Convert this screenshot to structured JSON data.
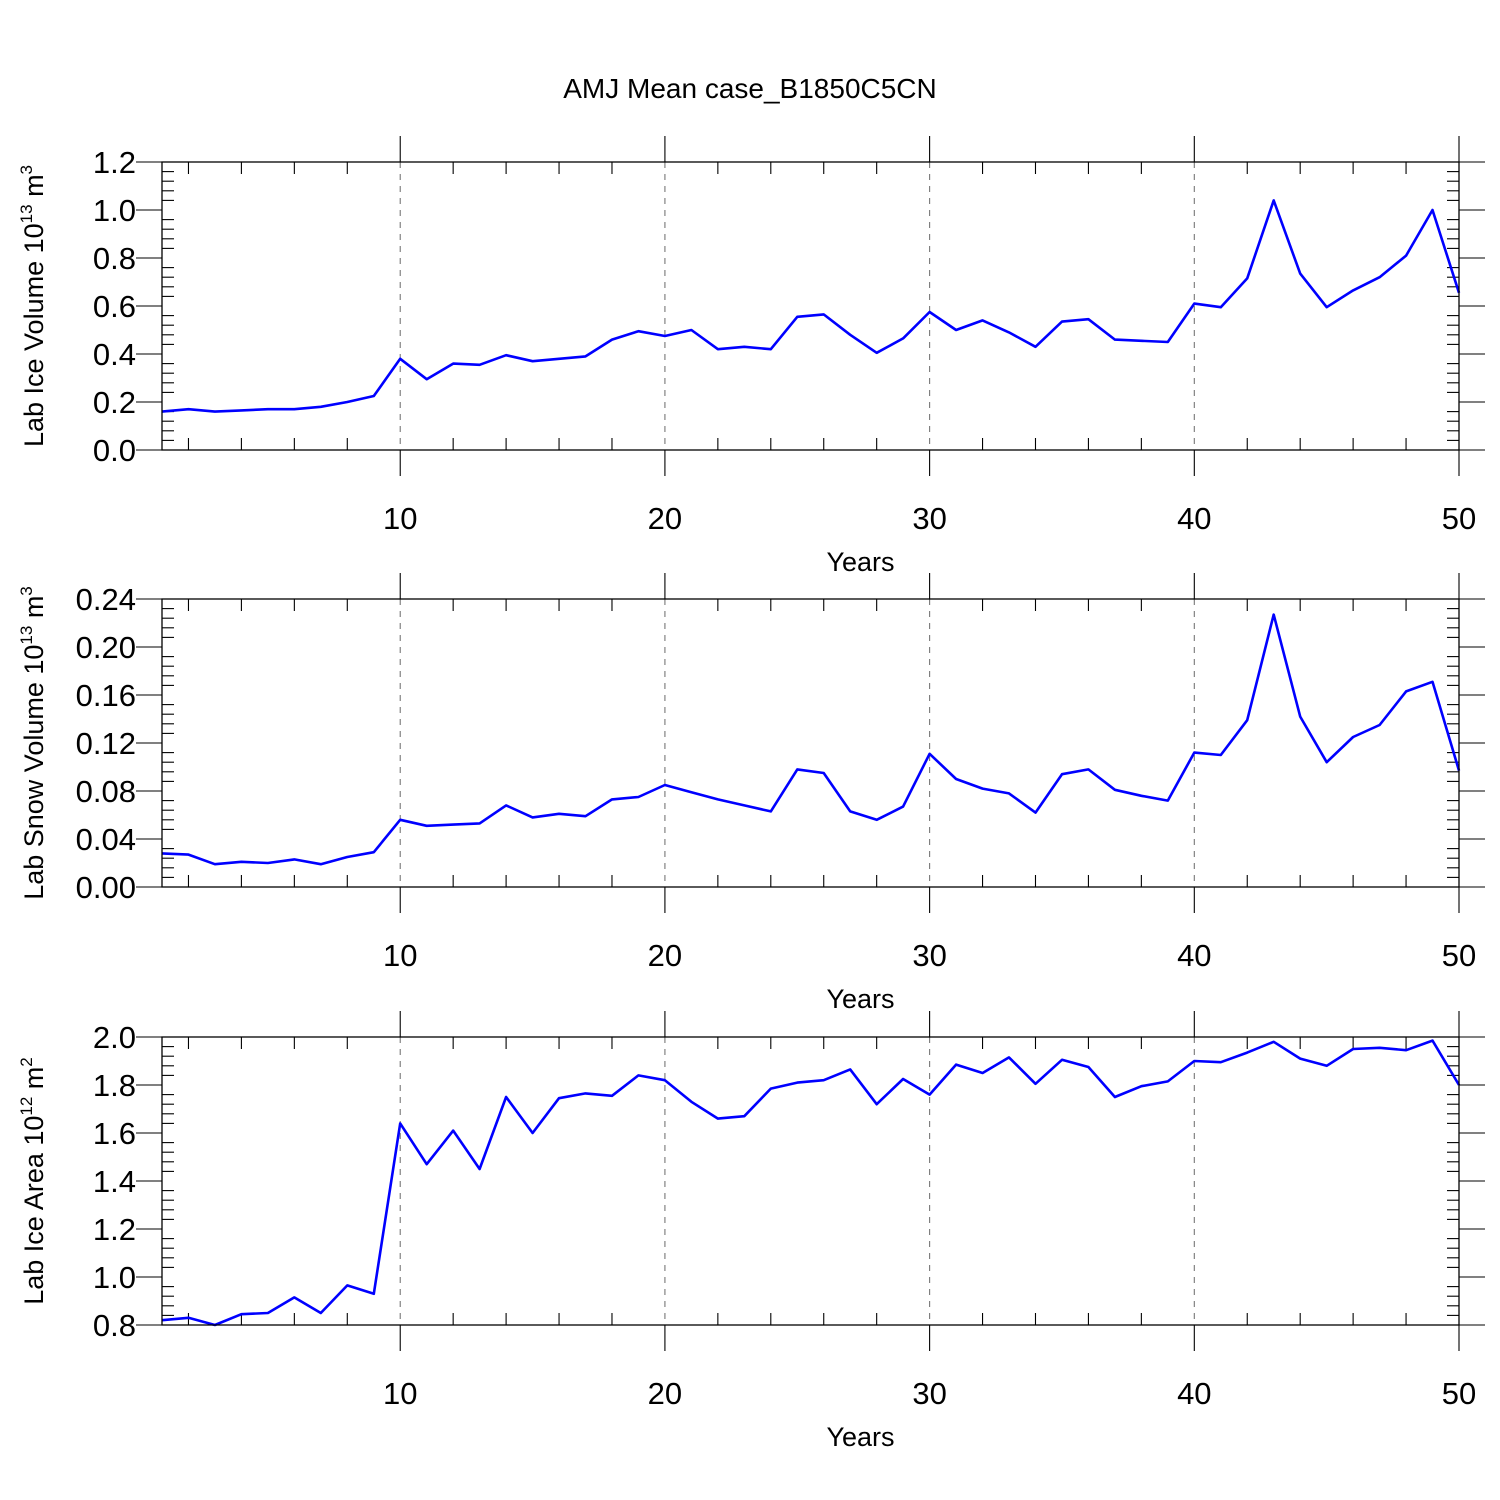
{
  "figure_title": "AMJ Mean case_B1850C5CN",
  "colors": {
    "series": "#0000ff",
    "grid": "#777777",
    "axes": "#000000"
  },
  "chart_data": [
    {
      "type": "line",
      "title": "",
      "xlabel": "Years",
      "ylabel": "Lab Ice Volume 10",
      "ylabel_sup": "13",
      "ylabel_unit": " m",
      "ylabel_unit_sup": "3",
      "xlim": [
        1,
        50
      ],
      "ylim": [
        0.0,
        1.2
      ],
      "xticks": [
        10,
        20,
        30,
        40,
        50
      ],
      "xtick_labels": [
        "10",
        "20",
        "30",
        "40",
        "50"
      ],
      "yticks": [
        0.0,
        0.2,
        0.4,
        0.6,
        0.8,
        1.0,
        1.2
      ],
      "ytick_labels": [
        "0.0",
        "0.2",
        "0.4",
        "0.6",
        "0.8",
        "1.0",
        "1.2"
      ],
      "grid": "vertical dashed lines at x = 10, 20, 30, 40",
      "series": [
        {
          "color": "#0000ff",
          "x": [
            1,
            2,
            3,
            4,
            5,
            6,
            7,
            8,
            9,
            10,
            11,
            12,
            13,
            14,
            15,
            16,
            17,
            18,
            19,
            20,
            21,
            22,
            23,
            24,
            25,
            26,
            27,
            28,
            29,
            30,
            31,
            32,
            33,
            34,
            35,
            36,
            37,
            38,
            39,
            40,
            41,
            42,
            43,
            44,
            45,
            46,
            47,
            48,
            49,
            50
          ],
          "values": [
            0.16,
            0.17,
            0.16,
            0.165,
            0.17,
            0.17,
            0.18,
            0.2,
            0.225,
            0.38,
            0.295,
            0.36,
            0.355,
            0.395,
            0.37,
            0.38,
            0.39,
            0.46,
            0.495,
            0.475,
            0.5,
            0.42,
            0.43,
            0.42,
            0.555,
            0.565,
            0.48,
            0.405,
            0.465,
            0.575,
            0.5,
            0.54,
            0.49,
            0.43,
            0.535,
            0.545,
            0.46,
            0.455,
            0.45,
            0.61,
            0.595,
            0.715,
            1.04,
            0.735,
            0.595,
            0.665,
            0.72,
            0.81,
            1.0,
            0.655
          ]
        }
      ]
    },
    {
      "type": "line",
      "title": "",
      "xlabel": "Years",
      "ylabel": "Lab Snow Volume 10",
      "ylabel_sup": "13",
      "ylabel_unit": " m",
      "ylabel_unit_sup": "3",
      "xlim": [
        1,
        50
      ],
      "ylim": [
        0.0,
        0.24
      ],
      "xticks": [
        10,
        20,
        30,
        40,
        50
      ],
      "xtick_labels": [
        "10",
        "20",
        "30",
        "40",
        "50"
      ],
      "yticks": [
        0.0,
        0.04,
        0.08,
        0.12,
        0.16,
        0.2,
        0.24
      ],
      "ytick_labels": [
        "0.00",
        "0.04",
        "0.08",
        "0.12",
        "0.16",
        "0.20",
        "0.24"
      ],
      "grid": "vertical dashed lines at x = 10, 20, 30, 40",
      "series": [
        {
          "color": "#0000ff",
          "x": [
            1,
            2,
            3,
            4,
            5,
            6,
            7,
            8,
            9,
            10,
            11,
            12,
            13,
            14,
            15,
            16,
            17,
            18,
            19,
            20,
            21,
            22,
            23,
            24,
            25,
            26,
            27,
            28,
            29,
            30,
            31,
            32,
            33,
            34,
            35,
            36,
            37,
            38,
            39,
            40,
            41,
            42,
            43,
            44,
            45,
            46,
            47,
            48,
            49,
            50
          ],
          "values": [
            0.028,
            0.027,
            0.019,
            0.021,
            0.02,
            0.023,
            0.019,
            0.025,
            0.029,
            0.056,
            0.051,
            0.052,
            0.053,
            0.068,
            0.058,
            0.061,
            0.059,
            0.073,
            0.075,
            0.085,
            0.079,
            0.073,
            0.068,
            0.063,
            0.098,
            0.095,
            0.063,
            0.056,
            0.067,
            0.111,
            0.09,
            0.082,
            0.078,
            0.062,
            0.094,
            0.098,
            0.081,
            0.076,
            0.072,
            0.112,
            0.11,
            0.139,
            0.227,
            0.142,
            0.104,
            0.125,
            0.135,
            0.163,
            0.171,
            0.097
          ]
        }
      ]
    },
    {
      "type": "line",
      "title": "",
      "xlabel": "Years",
      "ylabel": "Lab Ice Area 10",
      "ylabel_sup": "12",
      "ylabel_unit": " m",
      "ylabel_unit_sup": "2",
      "xlim": [
        1,
        50
      ],
      "ylim": [
        0.8,
        2.0
      ],
      "xticks": [
        10,
        20,
        30,
        40,
        50
      ],
      "xtick_labels": [
        "10",
        "20",
        "30",
        "40",
        "50"
      ],
      "yticks": [
        0.8,
        1.0,
        1.2,
        1.4,
        1.6,
        1.8,
        2.0
      ],
      "ytick_labels": [
        "0.8",
        "1.0",
        "1.2",
        "1.4",
        "1.6",
        "1.8",
        "2.0"
      ],
      "grid": "vertical dashed lines at x = 10, 20, 30, 40",
      "series": [
        {
          "color": "#0000ff",
          "x": [
            1,
            2,
            3,
            4,
            5,
            6,
            7,
            8,
            9,
            10,
            11,
            12,
            13,
            14,
            15,
            16,
            17,
            18,
            19,
            20,
            21,
            22,
            23,
            24,
            25,
            26,
            27,
            28,
            29,
            30,
            31,
            32,
            33,
            34,
            35,
            36,
            37,
            38,
            39,
            40,
            41,
            42,
            43,
            44,
            45,
            46,
            47,
            48,
            49,
            50
          ],
          "values": [
            0.82,
            0.83,
            0.8,
            0.845,
            0.85,
            0.915,
            0.85,
            0.965,
            0.93,
            1.64,
            1.47,
            1.61,
            1.45,
            1.75,
            1.6,
            1.745,
            1.765,
            1.755,
            1.84,
            1.82,
            1.73,
            1.66,
            1.67,
            1.785,
            1.81,
            1.82,
            1.865,
            1.72,
            1.825,
            1.76,
            1.885,
            1.85,
            1.915,
            1.805,
            1.905,
            1.875,
            1.75,
            1.795,
            1.815,
            1.9,
            1.895,
            1.935,
            1.98,
            1.91,
            1.88,
            1.95,
            1.955,
            1.945,
            1.985,
            1.8
          ]
        }
      ]
    }
  ]
}
